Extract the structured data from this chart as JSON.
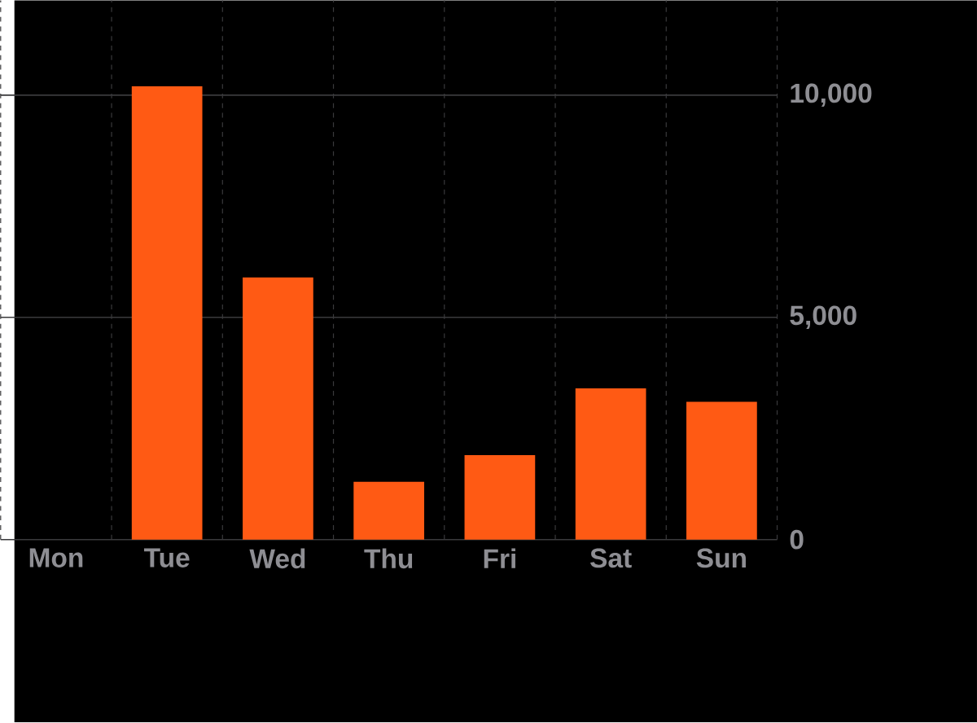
{
  "chart_data": {
    "type": "bar",
    "categories": [
      "Mon",
      "Tue",
      "Wed",
      "Thu",
      "Fri",
      "Sat",
      "Sun"
    ],
    "values": [
      0,
      10200,
      5900,
      1300,
      1900,
      3400,
      3100
    ],
    "color": "#ff5a14",
    "ylim": [
      0,
      12130
    ],
    "yticks": [
      0,
      {
        "value": 5000,
        "label": "5,000"
      },
      {
        "value": 10000,
        "label": "10,000"
      }
    ],
    "grid": true
  }
}
